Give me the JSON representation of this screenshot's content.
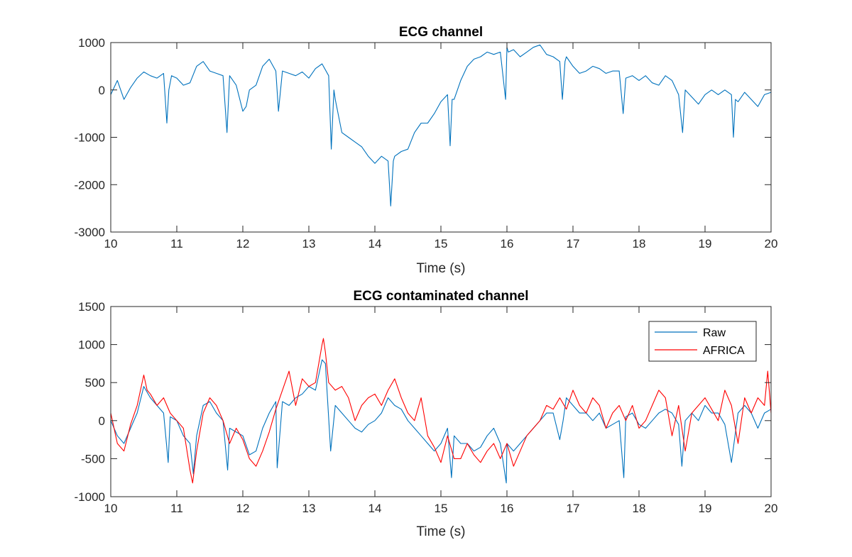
{
  "chart_data": [
    {
      "type": "line",
      "title": "ECG channel",
      "xlabel": "Time (s)",
      "ylabel": "",
      "xlim": [
        10,
        20
      ],
      "ylim": [
        -3000,
        1000
      ],
      "xticks": [
        "10",
        "11",
        "12",
        "13",
        "14",
        "15",
        "16",
        "17",
        "18",
        "19",
        "20"
      ],
      "yticks": [
        "1000",
        "0",
        "-1000",
        "-2000",
        "-3000"
      ],
      "ytick_values": [
        1000,
        0,
        -1000,
        -2000,
        -3000
      ],
      "grid": false,
      "legend": null,
      "series": [
        {
          "color": "#0072BD",
          "x": [
            10.0,
            10.1,
            10.2,
            10.3,
            10.4,
            10.5,
            10.6,
            10.7,
            10.8,
            10.85,
            10.88,
            10.92,
            11.0,
            11.1,
            11.2,
            11.3,
            11.4,
            11.5,
            11.6,
            11.7,
            11.76,
            11.8,
            11.9,
            12.0,
            12.05,
            12.1,
            12.2,
            12.3,
            12.4,
            12.5,
            12.54,
            12.6,
            12.7,
            12.8,
            12.9,
            13.0,
            13.1,
            13.2,
            13.3,
            13.34,
            13.38,
            13.4,
            13.5,
            13.6,
            13.7,
            13.8,
            13.9,
            14.0,
            14.1,
            14.2,
            14.24,
            14.28,
            14.3,
            14.4,
            14.5,
            14.6,
            14.7,
            14.8,
            14.9,
            15.0,
            15.1,
            15.14,
            15.17,
            15.2,
            15.3,
            15.4,
            15.5,
            15.6,
            15.7,
            15.8,
            15.9,
            15.98,
            16.0,
            16.02,
            16.1,
            16.2,
            16.3,
            16.4,
            16.5,
            16.6,
            16.7,
            16.8,
            16.84,
            16.88,
            16.9,
            17.0,
            17.1,
            17.2,
            17.3,
            17.4,
            17.5,
            17.6,
            17.7,
            17.76,
            17.8,
            17.9,
            18.0,
            18.1,
            18.2,
            18.3,
            18.4,
            18.5,
            18.6,
            18.66,
            18.7,
            18.8,
            18.9,
            19.0,
            19.1,
            19.2,
            19.3,
            19.4,
            19.43,
            19.46,
            19.5,
            19.6,
            19.7,
            19.8,
            19.9,
            20.0
          ],
          "y": [
            -100,
            200,
            -200,
            50,
            250,
            380,
            300,
            250,
            350,
            -700,
            0,
            300,
            250,
            100,
            150,
            500,
            600,
            400,
            350,
            300,
            -900,
            300,
            100,
            -450,
            -350,
            0,
            100,
            500,
            650,
            400,
            -450,
            400,
            350,
            300,
            380,
            250,
            450,
            550,
            300,
            -1250,
            0,
            -200,
            -900,
            -1000,
            -1100,
            -1200,
            -1400,
            -1550,
            -1400,
            -1500,
            -2450,
            -1500,
            -1400,
            -1300,
            -1250,
            -900,
            -700,
            -700,
            -500,
            -250,
            -100,
            -1180,
            -200,
            -200,
            200,
            500,
            650,
            700,
            800,
            750,
            800,
            -200,
            900,
            800,
            850,
            700,
            800,
            900,
            950,
            750,
            700,
            600,
            -200,
            600,
            700,
            500,
            350,
            400,
            500,
            450,
            350,
            400,
            400,
            -500,
            250,
            300,
            200,
            300,
            150,
            100,
            300,
            200,
            -100,
            -900,
            0,
            -150,
            -300,
            -100,
            0,
            -100,
            0,
            -100,
            -1000,
            -200,
            -250,
            -50,
            -200,
            -350,
            -100,
            -50
          ]
        }
      ]
    },
    {
      "type": "line",
      "title": "ECG contaminated channel",
      "xlabel": "Time (s)",
      "ylabel": "",
      "xlim": [
        10,
        20
      ],
      "ylim": [
        -1000,
        1500
      ],
      "xticks": [
        "10",
        "11",
        "12",
        "13",
        "14",
        "15",
        "16",
        "17",
        "18",
        "19",
        "20"
      ],
      "yticks": [
        "1500",
        "1000",
        "500",
        "0",
        "-500",
        "-1000"
      ],
      "ytick_values": [
        1500,
        1000,
        500,
        0,
        -500,
        -1000
      ],
      "grid": false,
      "legend": "top-right",
      "series": [
        {
          "name": "Raw",
          "color": "#0072BD",
          "x": [
            10.0,
            10.1,
            10.2,
            10.3,
            10.4,
            10.5,
            10.6,
            10.7,
            10.8,
            10.87,
            10.9,
            11.0,
            11.1,
            11.2,
            11.25,
            11.3,
            11.4,
            11.5,
            11.6,
            11.7,
            11.77,
            11.8,
            11.9,
            12.0,
            12.1,
            12.2,
            12.3,
            12.4,
            12.5,
            12.52,
            12.6,
            12.7,
            12.8,
            12.9,
            13.0,
            13.1,
            13.2,
            13.25,
            13.33,
            13.4,
            13.5,
            13.6,
            13.7,
            13.8,
            13.9,
            14.0,
            14.1,
            14.2,
            14.3,
            14.4,
            14.5,
            14.6,
            14.7,
            14.8,
            14.9,
            15.0,
            15.1,
            15.16,
            15.2,
            15.3,
            15.4,
            15.5,
            15.6,
            15.7,
            15.8,
            15.9,
            15.99,
            16.0,
            16.1,
            16.2,
            16.3,
            16.4,
            16.5,
            16.6,
            16.7,
            16.8,
            16.85,
            16.9,
            17.0,
            17.1,
            17.2,
            17.3,
            17.4,
            17.5,
            17.6,
            17.7,
            17.77,
            17.8,
            17.9,
            18.0,
            18.1,
            18.2,
            18.3,
            18.4,
            18.5,
            18.6,
            18.65,
            18.7,
            18.8,
            18.9,
            19.0,
            19.1,
            19.2,
            19.3,
            19.4,
            19.5,
            19.6,
            19.7,
            19.8,
            19.9,
            20.0
          ],
          "y": [
            0,
            -200,
            -300,
            -100,
            100,
            450,
            300,
            200,
            100,
            -550,
            50,
            0,
            -200,
            -300,
            -700,
            -200,
            200,
            250,
            100,
            0,
            -650,
            -100,
            -150,
            -200,
            -450,
            -400,
            -100,
            100,
            250,
            -620,
            250,
            200,
            300,
            350,
            450,
            400,
            800,
            750,
            -400,
            200,
            100,
            0,
            -100,
            -150,
            -50,
            0,
            100,
            300,
            200,
            150,
            0,
            -100,
            -200,
            -300,
            -400,
            -300,
            -100,
            -750,
            -200,
            -300,
            -300,
            -400,
            -350,
            -200,
            -100,
            -300,
            -820,
            -300,
            -400,
            -300,
            -200,
            -100,
            0,
            100,
            100,
            -250,
            0,
            300,
            200,
            100,
            100,
            0,
            100,
            -100,
            -50,
            0,
            -750,
            50,
            100,
            -50,
            -100,
            0,
            100,
            150,
            100,
            -50,
            -600,
            0,
            100,
            0,
            200,
            100,
            100,
            -50,
            -550,
            100,
            200,
            100,
            -100,
            100,
            150
          ]
        },
        {
          "name": "AFRICA",
          "color": "#FF0000",
          "x": [
            10.0,
            10.1,
            10.2,
            10.3,
            10.4,
            10.5,
            10.55,
            10.6,
            10.7,
            10.8,
            10.9,
            11.0,
            11.1,
            11.2,
            11.24,
            11.3,
            11.4,
            11.5,
            11.6,
            11.7,
            11.8,
            11.9,
            12.0,
            12.1,
            12.2,
            12.3,
            12.4,
            12.5,
            12.6,
            12.7,
            12.8,
            12.9,
            13.0,
            13.1,
            13.2,
            13.22,
            13.25,
            13.3,
            13.4,
            13.5,
            13.6,
            13.7,
            13.8,
            13.9,
            14.0,
            14.1,
            14.2,
            14.3,
            14.4,
            14.5,
            14.6,
            14.7,
            14.8,
            14.9,
            15.0,
            15.1,
            15.2,
            15.3,
            15.4,
            15.5,
            15.6,
            15.7,
            15.8,
            15.9,
            16.0,
            16.1,
            16.2,
            16.3,
            16.4,
            16.5,
            16.6,
            16.7,
            16.8,
            16.9,
            17.0,
            17.1,
            17.2,
            17.3,
            17.4,
            17.5,
            17.6,
            17.7,
            17.8,
            17.9,
            18.0,
            18.1,
            18.2,
            18.3,
            18.4,
            18.5,
            18.6,
            18.7,
            18.8,
            18.9,
            19.0,
            19.1,
            19.2,
            19.3,
            19.4,
            19.5,
            19.6,
            19.7,
            19.8,
            19.9,
            19.95,
            20.0
          ],
          "y": [
            100,
            -300,
            -400,
            -50,
            200,
            600,
            400,
            350,
            200,
            300,
            100,
            0,
            -100,
            -650,
            -820,
            -400,
            100,
            300,
            200,
            0,
            -300,
            -100,
            -250,
            -500,
            -600,
            -400,
            -150,
            150,
            400,
            650,
            200,
            550,
            450,
            500,
            1000,
            1080,
            900,
            500,
            400,
            450,
            300,
            0,
            200,
            300,
            350,
            200,
            400,
            550,
            300,
            100,
            0,
            300,
            -200,
            -350,
            -550,
            -200,
            -500,
            -500,
            -300,
            -450,
            -550,
            -400,
            -300,
            -500,
            -300,
            -600,
            -400,
            -200,
            -100,
            0,
            200,
            150,
            300,
            150,
            400,
            200,
            100,
            300,
            200,
            -100,
            100,
            200,
            0,
            200,
            -100,
            0,
            200,
            400,
            300,
            -200,
            200,
            -400,
            100,
            200,
            300,
            150,
            0,
            400,
            200,
            -300,
            300,
            100,
            300,
            200,
            650,
            100
          ]
        }
      ]
    }
  ]
}
